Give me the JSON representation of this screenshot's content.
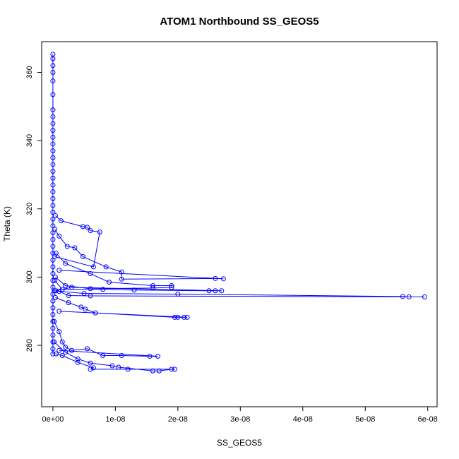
{
  "chart_data": {
    "type": "line",
    "title": "ATOM1 Northbound SS_GEOS5",
    "xlabel": "SS_GEOS5",
    "ylabel": "Theta (K)",
    "xlim": [
      -1.8e-09,
      6.15e-08
    ],
    "ylim": [
      262,
      369
    ],
    "x_ticks": [
      0,
      1e-08,
      2e-08,
      3e-08,
      4e-08,
      5e-08,
      6e-08
    ],
    "x_tick_labels": [
      "0e+00",
      "1e-08",
      "2e-08",
      "3e-08",
      "4e-08",
      "5e-08",
      "6e-08"
    ],
    "y_ticks": [
      280,
      300,
      320,
      340,
      360
    ],
    "y_tick_labels": [
      "280",
      "300",
      "320",
      "340",
      "360"
    ],
    "grid": false,
    "legend": "none",
    "series": [
      {
        "color": "#0000ff",
        "marker": "open-circle",
        "segments": [
          [
            [
              0,
              365.3
            ],
            [
              0,
              364
            ],
            [
              0,
              362
            ],
            [
              0,
              360
            ],
            [
              0,
              357.5
            ],
            [
              0,
              353.5
            ],
            [
              0,
              349
            ],
            [
              0,
              347
            ],
            [
              0,
              345
            ],
            [
              0,
              343
            ],
            [
              0,
              341
            ],
            [
              0,
              339
            ],
            [
              0,
              337
            ],
            [
              0,
              335
            ],
            [
              0,
              333
            ],
            [
              0,
              331
            ],
            [
              0,
              329
            ],
            [
              0,
              327
            ],
            [
              0,
              325
            ],
            [
              0,
              323
            ],
            [
              0,
              321
            ],
            [
              0,
              319
            ],
            [
              0,
              317
            ],
            [
              0,
              315
            ],
            [
              0,
              313
            ],
            [
              0,
              311
            ],
            [
              0,
              309
            ],
            [
              0,
              307
            ],
            [
              0,
              305
            ],
            [
              0,
              303
            ],
            [
              0,
              301
            ],
            [
              0,
              299
            ],
            [
              0,
              297
            ],
            [
              0,
              295
            ],
            [
              0,
              293
            ],
            [
              0,
              291
            ],
            [
              0,
              289
            ],
            [
              0,
              287
            ],
            [
              0,
              285
            ],
            [
              0,
              283
            ],
            [
              0,
              281
            ],
            [
              0,
              279
            ],
            [
              0,
              277.5
            ]
          ],
          [
            [
              4e-10,
              318
            ],
            [
              1.3e-09,
              316.5
            ],
            [
              4.8e-09,
              314.8
            ],
            [
              5.5e-09,
              314.6
            ],
            [
              6e-09,
              313.6
            ],
            [
              7.5e-09,
              313.2
            ],
            [
              6.5e-09,
              303
            ],
            [
              3e-10,
              306
            ]
          ],
          [
            [
              3e-10,
              314
            ],
            [
              1e-09,
              312
            ],
            [
              2.3e-09,
              309
            ],
            [
              3.5e-09,
              308.6
            ],
            [
              4.8e-09,
              306
            ],
            [
              8.5e-09,
              303
            ],
            [
              1.1e-08,
              301.5
            ],
            [
              1.1e-08,
              299.4
            ],
            [
              2.6e-08,
              299.6
            ],
            [
              2.73e-08,
              299.5
            ],
            [
              1e-09,
              302
            ]
          ],
          [
            [
              5e-10,
              307
            ],
            [
              2e-09,
              304
            ],
            [
              6e-09,
              301
            ],
            [
              9e-09,
              298.5
            ],
            [
              1.6e-08,
              297.5
            ],
            [
              1.9e-08,
              297.5
            ],
            [
              1.9e-08,
              297
            ],
            [
              1.6e-08,
              296.8
            ],
            [
              6e-09,
              296.6
            ],
            [
              2e-09,
              297.5
            ],
            [
              4e-10,
              300
            ]
          ],
          [
            [
              3e-10,
              299
            ],
            [
              1.5e-09,
              296.4
            ],
            [
              8e-09,
              296.4
            ],
            [
              1.3e-08,
              296.2
            ],
            [
              2.5e-08,
              296
            ],
            [
              2.6e-08,
              296
            ],
            [
              2.7e-08,
              296
            ],
            [
              3e-09,
              297
            ],
            [
              5e-10,
              296
            ]
          ],
          [
            [
              2e-10,
              296
            ],
            [
              5e-09,
              295.2
            ],
            [
              2e-08,
              295
            ],
            [
              5.6e-08,
              294.3
            ],
            [
              5.7e-08,
              294.2
            ],
            [
              5.95e-08,
              294.2
            ],
            [
              6e-09,
              294.5
            ],
            [
              2.5e-09,
              294.6
            ],
            [
              1e-09,
              295.8
            ]
          ],
          [
            [
              4e-10,
              294
            ],
            [
              2.5e-09,
              292.5
            ],
            [
              4.5e-09,
              291.2
            ],
            [
              5.2e-09,
              290.6
            ],
            [
              6.8e-09,
              289.5
            ],
            [
              1.95e-08,
              288.2
            ],
            [
              2e-08,
              288.2
            ],
            [
              2.1e-08,
              288.2
            ],
            [
              2.15e-08,
              288.2
            ],
            [
              1e-09,
              290
            ]
          ],
          [
            [
              2e-10,
              287
            ],
            [
              1e-09,
              284
            ],
            [
              1.5e-09,
              281
            ],
            [
              2e-09,
              279.5
            ],
            [
              3e-09,
              278.5
            ],
            [
              5.5e-09,
              279
            ],
            [
              8e-09,
              277
            ],
            [
              1.1e-08,
              277
            ],
            [
              1.55e-08,
              276.8
            ],
            [
              1.68e-08,
              276.8
            ],
            [
              1e-09,
              278.5
            ]
          ],
          [
            [
              2e-10,
              281
            ],
            [
              2e-09,
              278
            ],
            [
              4e-09,
              276
            ],
            [
              6e-09,
              274.8
            ],
            [
              9.5e-09,
              274
            ],
            [
              1.05e-08,
              273.6
            ],
            [
              1.6e-08,
              272.5
            ],
            [
              1.7e-08,
              272.5
            ],
            [
              1.9e-08,
              273
            ],
            [
              1.95e-08,
              273
            ],
            [
              1.2e-08,
              273
            ],
            [
              6e-09,
              273
            ],
            [
              6.5e-09,
              273.4
            ],
            [
              4e-09,
              275
            ],
            [
              1.5e-09,
              277
            ],
            [
              5e-10,
              277.5
            ]
          ]
        ]
      }
    ]
  }
}
